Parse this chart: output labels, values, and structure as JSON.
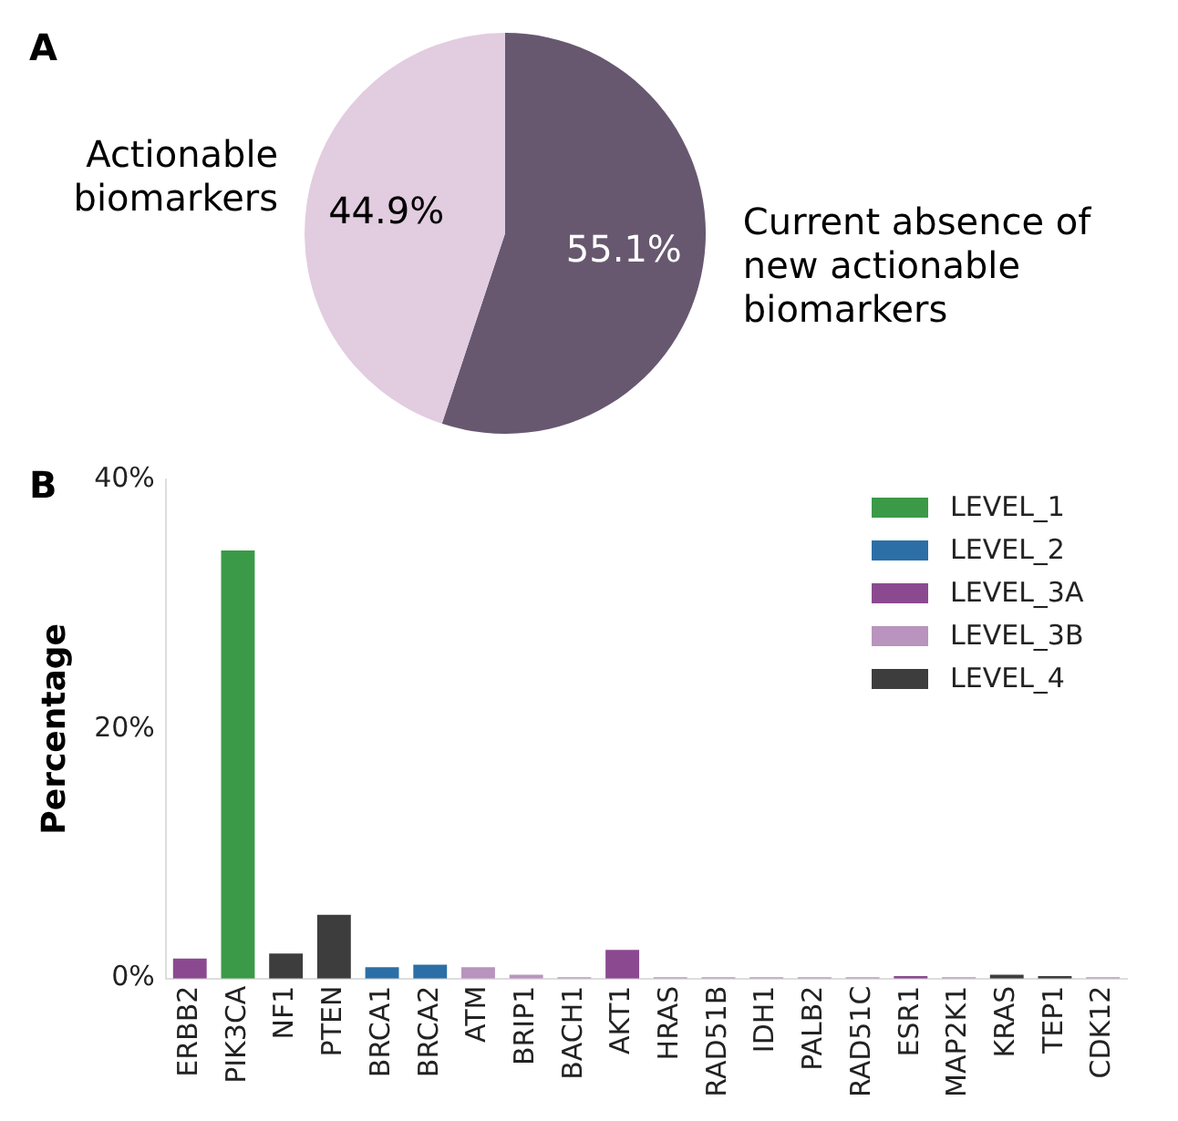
{
  "chart_data": [
    {
      "type": "pie",
      "annotations": [
        "A"
      ],
      "categories": [
        "Current absence of new actionable biomarkers",
        "Actionable biomarkers"
      ],
      "values": [
        55.1,
        44.9
      ],
      "colors": [
        "#675870",
        "#e2cce0"
      ],
      "value_labels": [
        "55.1%",
        "44.9%"
      ]
    },
    {
      "type": "bar",
      "annotations": [
        "B"
      ],
      "ylabel": "Percentage",
      "stacked": true,
      "legend": "top right",
      "grid": false,
      "categories": [
        "ERBB2",
        "PIK3CA",
        "NF1",
        "PTEN",
        "BRCA1",
        "BRCA2",
        "ATM",
        "BRIP1",
        "BACH1",
        "AKT1",
        "HRAS",
        "RAD51B",
        "IDH1",
        "PALB2",
        "RAD51C",
        "ESR1",
        "MAP2K1",
        "KRAS",
        "TEP1",
        "CDK12"
      ],
      "series": [
        {
          "name": "LEVEL_1",
          "color": "#3a9a47",
          "values": [
            null,
            34.3,
            null,
            null,
            null,
            null,
            null,
            null,
            null,
            null,
            null,
            null,
            null,
            null,
            null,
            null,
            null,
            null,
            null,
            null
          ]
        },
        {
          "name": "LEVEL_2",
          "color": "#2c6fa6",
          "values": [
            null,
            null,
            null,
            null,
            0.9,
            1.1,
            null,
            null,
            null,
            null,
            null,
            null,
            null,
            null,
            null,
            null,
            null,
            null,
            null,
            null
          ]
        },
        {
          "name": "LEVEL_3A",
          "color": "#8b4a90",
          "values": [
            1.6,
            null,
            null,
            null,
            null,
            null,
            null,
            null,
            null,
            2.3,
            null,
            null,
            null,
            null,
            null,
            0.2,
            null,
            null,
            null,
            null
          ]
        },
        {
          "name": "LEVEL_3B",
          "color": "#b994be",
          "values": [
            null,
            null,
            null,
            null,
            null,
            null,
            0.9,
            0.3,
            0.1,
            null,
            0.1,
            0.1,
            0.1,
            0.1,
            0.1,
            null,
            0.1,
            null,
            null,
            0.1
          ]
        },
        {
          "name": "LEVEL_4",
          "color": "#3d3d3d",
          "values": [
            null,
            null,
            2.0,
            5.1,
            null,
            null,
            null,
            null,
            null,
            null,
            null,
            null,
            null,
            null,
            null,
            null,
            null,
            0.3,
            0.2,
            null
          ]
        }
      ],
      "ylim": [
        0,
        40
      ],
      "yticks": [
        {
          "value": 0,
          "label": "0%"
        },
        {
          "value": 20,
          "label": "20%"
        },
        {
          "value": 40,
          "label": "40%"
        }
      ]
    }
  ]
}
